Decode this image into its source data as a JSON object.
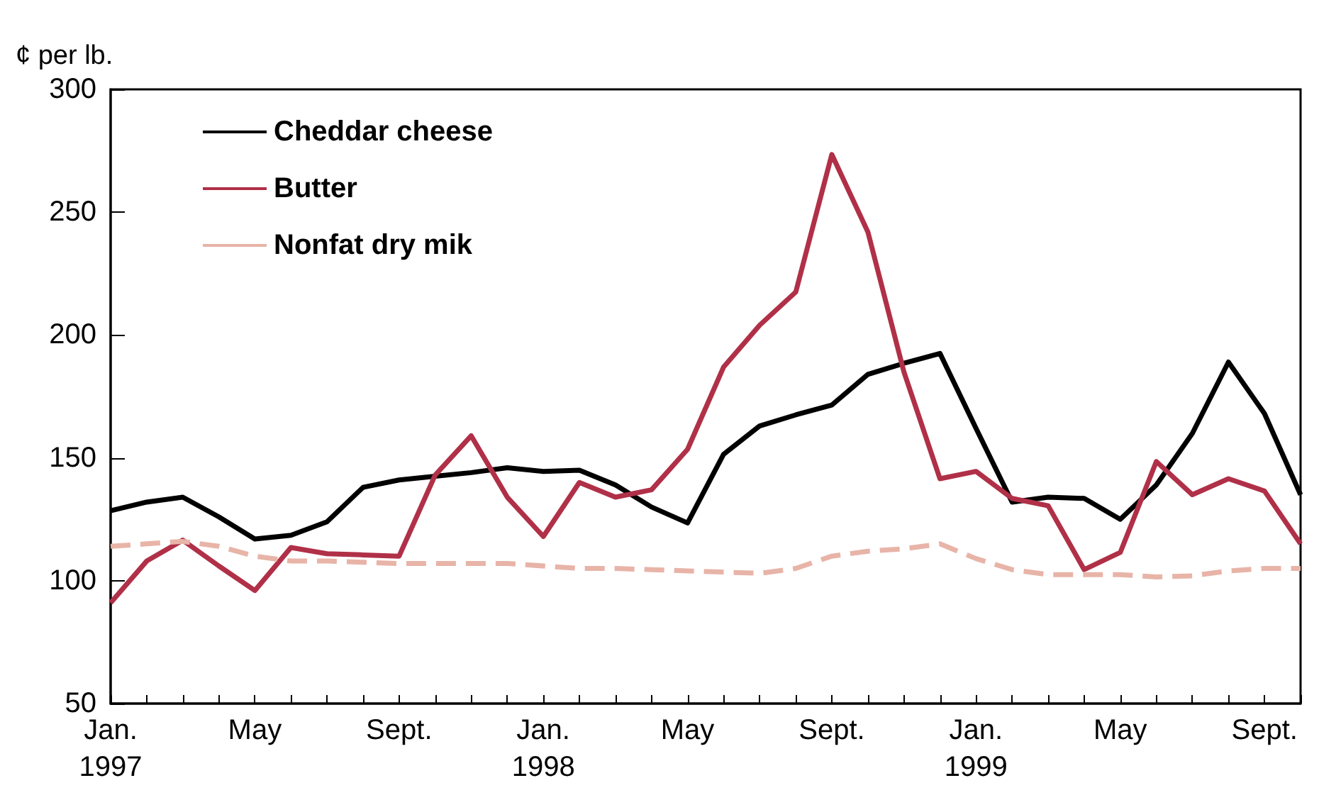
{
  "chart_data": {
    "type": "line",
    "ylabel": "¢ per lb.",
    "categories": [
      "Jan.\n1997",
      null,
      null,
      null,
      "May",
      null,
      null,
      null,
      "Sept.",
      null,
      null,
      null,
      "Jan.\n1998",
      null,
      null,
      null,
      "May",
      null,
      null,
      null,
      "Sept.",
      null,
      null,
      null,
      "Jan.\n1999",
      null,
      null,
      null,
      "May",
      null,
      null,
      null,
      "Sept.",
      null
    ],
    "series": [
      {
        "name": "Cheddar cheese",
        "color": "#000000",
        "line_style": "solid",
        "values": [
          128.5,
          132,
          134,
          126,
          117,
          118.5,
          124,
          138,
          141,
          142.5,
          144,
          146,
          144.5,
          145,
          139,
          130,
          123.5,
          151.5,
          163,
          167.5,
          171.5,
          184,
          188.5,
          192.5,
          162,
          132,
          134,
          133.5,
          125,
          139,
          160,
          189,
          168,
          135
        ]
      },
      {
        "name": "Butter",
        "color": "#b03048",
        "line_style": "solid",
        "values": [
          91,
          108,
          116.5,
          106,
          96,
          113.5,
          111,
          110.5,
          110,
          143,
          159,
          134,
          118,
          140,
          134,
          137,
          153.5,
          187,
          204,
          217.5,
          273.5,
          242,
          185,
          141.5,
          144.5,
          133.5,
          130.5,
          104.5,
          111.5,
          148.5,
          135,
          141.5,
          136.5,
          115
        ]
      },
      {
        "name": "Nonfat dry mik",
        "color": "#e8b4a8",
        "line_style": "dashed",
        "values": [
          114,
          115,
          116,
          114,
          110,
          108,
          108,
          107.5,
          107,
          107,
          107,
          107,
          106,
          105,
          105,
          104.5,
          104,
          103.5,
          103,
          105,
          110,
          112,
          113,
          115,
          109,
          104.5,
          102.5,
          102.5,
          102.5,
          101.5,
          102,
          104,
          105,
          105
        ]
      }
    ],
    "ylim": [
      50,
      300
    ],
    "yticks": [
      50,
      100,
      150,
      200,
      250,
      300
    ],
    "grid": false,
    "legend": "top left",
    "marker": "none"
  }
}
